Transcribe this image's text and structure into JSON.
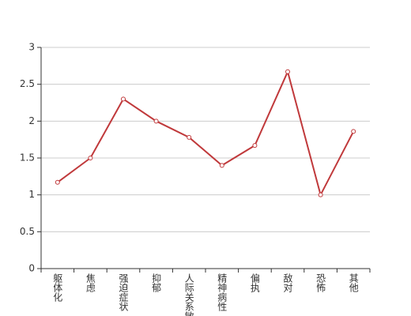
{
  "chart_data": {
    "type": "line",
    "categories": [
      "躯体化",
      "焦虑",
      "强迫症状",
      "抑郁",
      "人际关系敏感",
      "精神病性",
      "偏执",
      "敌对",
      "恐怖",
      "其他"
    ],
    "values": [
      1.17,
      1.5,
      2.3,
      2.0,
      1.78,
      1.4,
      1.67,
      2.67,
      1.0,
      1.86
    ],
    "color": "#c0393b",
    "ylim": [
      0,
      3
    ],
    "yticks": [
      0,
      0.5,
      1,
      1.5,
      2,
      2.5,
      3
    ],
    "grid": true
  }
}
